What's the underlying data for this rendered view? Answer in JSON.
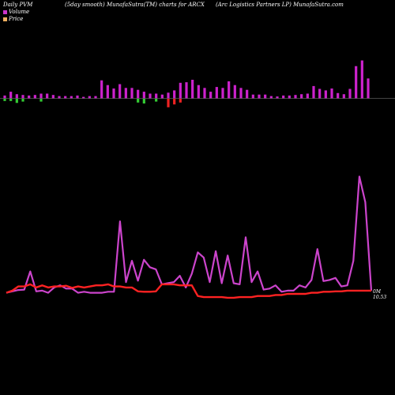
{
  "header": {
    "left": "Daily PVM",
    "center": "(5day smooth) MunafaSutra(TM) charts for ARCX",
    "right": "(Arc Logistics Partners LP) MunafaSutra.com"
  },
  "legend": [
    {
      "label": "Volume",
      "color": "#cc33cc"
    },
    {
      "label": "Price",
      "color": "#f0b060"
    }
  ],
  "colors": {
    "background": "#000000",
    "volume_bar": "#cc22cc",
    "volume_up": "#33cc33",
    "volume_down": "#ee2222",
    "volume_line": "#cc44cc",
    "price_line": "#ff2222",
    "baseline": "#aaaaaa"
  },
  "chart_data": {
    "type": "bar+line",
    "title": "(5day smooth) MunafaSutra(TM) charts for ARCX",
    "volume_bars": [
      0.15,
      0.35,
      0.22,
      0.18,
      0.15,
      0.18,
      0.25,
      0.25,
      0.18,
      0.12,
      0.12,
      0.12,
      0.15,
      0.08,
      0.12,
      0.12,
      0.95,
      0.7,
      0.52,
      0.75,
      0.55,
      0.55,
      0.45,
      0.35,
      0.25,
      0.25,
      0.2,
      0.3,
      0.42,
      0.82,
      0.85,
      0.98,
      0.7,
      0.55,
      0.35,
      0.6,
      0.55,
      0.9,
      0.7,
      0.55,
      0.45,
      0.2,
      0.2,
      0.2,
      0.12,
      0.1,
      0.15,
      0.15,
      0.18,
      0.22,
      0.25,
      0.65,
      0.5,
      0.42,
      0.52,
      0.28,
      0.22,
      0.5,
      1.7,
      2.0,
      1.05
    ],
    "volume_flow": [
      -0.12,
      -0.12,
      -0.22,
      -0.15,
      0,
      0,
      -0.15,
      0,
      0,
      0,
      0,
      0,
      0,
      0,
      0,
      0,
      0,
      0,
      0,
      0,
      0,
      0,
      -0.2,
      -0.25,
      0,
      -0.15,
      0,
      0.45,
      0.3,
      0.2,
      0,
      0,
      0,
      0,
      0,
      0,
      0,
      0,
      0,
      0,
      0,
      0,
      0,
      0,
      0,
      0,
      0,
      0,
      0,
      0,
      0,
      0,
      0,
      0,
      0,
      0,
      0,
      0,
      0,
      0,
      0
    ],
    "volume_line": [
      0.05,
      0.12,
      0.18,
      0.2,
      1.05,
      0.12,
      0.15,
      0.05,
      0.3,
      0.4,
      0.25,
      0.25,
      0.05,
      0.1,
      0.05,
      0.05,
      0.05,
      0.1,
      0.1,
      3.4,
      0.55,
      1.55,
      0.62,
      1.6,
      1.25,
      1.15,
      0.45,
      0.5,
      0.55,
      0.85,
      0.3,
      0.95,
      1.95,
      1.7,
      0.55,
      2.0,
      0.5,
      1.8,
      0.5,
      0.45,
      2.65,
      0.55,
      1.05,
      0.2,
      0.25,
      0.4,
      0.1,
      0.15,
      0.15,
      0.4,
      0.3,
      0.65,
      2.1,
      0.6,
      0.65,
      0.75,
      0.35,
      0.4,
      1.55,
      5.5,
      4.3,
      0.15
    ],
    "price_line": [
      0.05,
      0.15,
      0.35,
      0.35,
      0.45,
      0.3,
      0.4,
      0.3,
      0.35,
      0.35,
      0.38,
      0.28,
      0.35,
      0.3,
      0.35,
      0.4,
      0.4,
      0.45,
      0.35,
      0.35,
      0.3,
      0.3,
      0.12,
      0.1,
      0.1,
      0.12,
      0.45,
      0.45,
      0.45,
      0.4,
      0.4,
      0.4,
      -0.1,
      -0.15,
      -0.15,
      -0.15,
      -0.15,
      -0.18,
      -0.18,
      -0.15,
      -0.15,
      -0.15,
      -0.1,
      -0.1,
      -0.1,
      -0.05,
      -0.05,
      0.0,
      0.0,
      0.0,
      0.0,
      0.05,
      0.05,
      0.1,
      0.1,
      0.12,
      0.12,
      0.15,
      0.15,
      0.15,
      0.15,
      0.15
    ],
    "price_label": "0M",
    "price_value": "10.53"
  }
}
